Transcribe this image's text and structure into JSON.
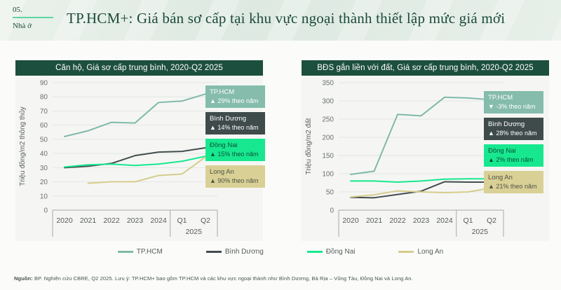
{
  "page": {
    "slide_number": "05.",
    "slide_section": "Nhà ở",
    "title": "TP.HCM+: Giá bán sơ cấp tại khu vực ngoại thành thiết lập mức giá mới"
  },
  "colors": {
    "dark_green": "#1b4a3a",
    "banner_green": "#1d4f3e",
    "mint_underline": "#5fd6a0",
    "celadon": "#80B9AA",
    "dark_grey": "#424E4D",
    "accent_green": "#17E88F",
    "wheat": "#D6CC8C"
  },
  "chart_data": [
    {
      "type": "line",
      "title": "Căn hộ, Giá sơ cấp trung bình, 2020-Q2 2025",
      "ylabel": "Triệu đồng/m2 thông thủy",
      "categories": [
        "2020",
        "2021",
        "2022",
        "2023",
        "2024",
        "Q1",
        "Q2"
      ],
      "x_group_label": "2025",
      "ylim": [
        0,
        90
      ],
      "ytick_step": 10,
      "grid": true,
      "legend_position": "right-overlay",
      "series": [
        {
          "name": "TP.HCM",
          "color": "#80B9AA",
          "values": [
            52,
            56,
            62,
            61.5,
            76,
            77,
            82
          ],
          "annotation": "▲ 29% theo năm",
          "box_bg": "#85BCAC",
          "box_fg": "#ffffff"
        },
        {
          "name": "Bình Dương",
          "color": "#424E4D",
          "values": [
            30,
            31,
            33,
            38.5,
            41,
            41.5,
            44
          ],
          "annotation": "▲ 14% theo năm",
          "box_bg": "#3F4B4B",
          "box_fg": "#ffffff"
        },
        {
          "name": "Đồng Nai",
          "color": "#17E88F",
          "values": [
            30.5,
            32,
            32.5,
            31.5,
            32.5,
            34.5,
            38
          ],
          "annotation": "▲ 15% theo năm",
          "box_bg": "#17E88F",
          "box_fg": "#0A5136"
        },
        {
          "name": "Long An",
          "color": "#D6CC8C",
          "values": [
            null,
            19,
            20,
            20,
            24.5,
            25.5,
            37.5
          ],
          "annotation": "▲ 90% theo năm",
          "box_bg": "#D9D096",
          "box_fg": "#4E5345"
        }
      ]
    },
    {
      "type": "line",
      "title": "BĐS gắn liền với đất, Giá sơ cấp trung bình, 2020-Q2 2025",
      "ylabel": "Triệu đồng/m2 đất",
      "categories": [
        "2020",
        "2021",
        "2022",
        "2023",
        "2024",
        "Q1",
        "Q2"
      ],
      "x_group_label": "2025",
      "ylim": [
        0,
        350
      ],
      "ytick_step": 50,
      "grid": true,
      "legend_position": "right-overlay",
      "series": [
        {
          "name": "TP.HCM",
          "color": "#80B9AA",
          "values": [
            98,
            107,
            263,
            259,
            310,
            308,
            303
          ],
          "annotation": "▼ -3% theo năm",
          "box_bg": "#85BCAC",
          "box_fg": "#ffffff"
        },
        {
          "name": "Bình Dương",
          "color": "#424E4D",
          "values": [
            35,
            34,
            43,
            52,
            78,
            77,
            77
          ],
          "annotation": "▲ 28% theo năm",
          "box_bg": "#3F4B4B",
          "box_fg": "#ffffff"
        },
        {
          "name": "Đồng Nai",
          "color": "#17E88F",
          "values": [
            80,
            80,
            77,
            80,
            85,
            86,
            86
          ],
          "annotation": "▲ 2% theo năm",
          "box_bg": "#17E88F",
          "box_fg": "#0A5136"
        },
        {
          "name": "Long An",
          "color": "#D6CC8C",
          "values": [
            36,
            42,
            53,
            50,
            48,
            50,
            61
          ],
          "annotation": "▲ 21% theo năm",
          "box_bg": "#D9D096",
          "box_fg": "#4E5345"
        }
      ]
    }
  ],
  "legend_bottom": [
    {
      "label": "TP.HCM",
      "color": "#80B9AA"
    },
    {
      "label": "Bình Dương",
      "color": "#424E4D"
    },
    {
      "label": "Đồng Nai",
      "color": "#17E88F"
    },
    {
      "label": "Long An",
      "color": "#D6CC8C"
    }
  ],
  "footer": {
    "source_label": "Nguồn:",
    "source_text": " BP. Nghiên cứu CBRE, Q2 2025. Lưu ý: TP.HCM+ bao gồm TP.HCM và các khu vực ngoại thành như Bình Dương, Bà Rịa – Vũng Tàu, Đồng Nai và Long An."
  }
}
